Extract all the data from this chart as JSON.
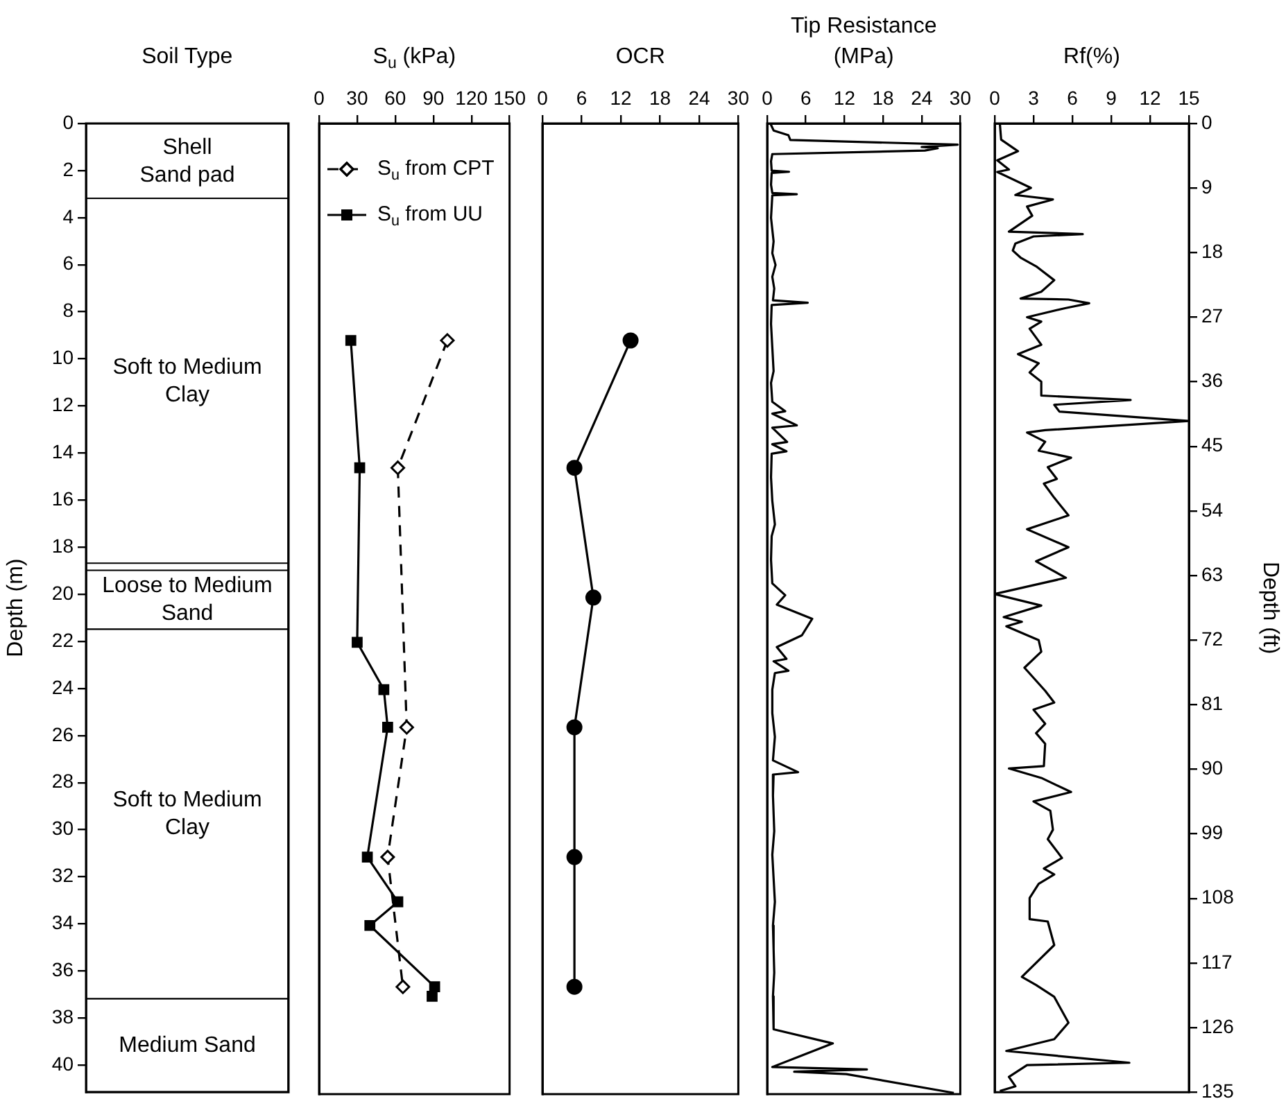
{
  "chart_data": [
    {
      "type": "bar",
      "stacked": true,
      "title": "Soil Type",
      "ylabel": "Depth (m)",
      "categories": [
        null
      ],
      "ylim": [
        41.15,
        0
      ],
      "yticks": [
        0,
        2,
        4,
        6,
        8,
        10,
        12,
        14,
        16,
        18,
        20,
        22,
        24,
        26,
        28,
        30,
        32,
        34,
        36,
        38,
        40
      ],
      "tick_labels": "y",
      "series": [
        {
          "color": "#ffffff",
          "values": [
            3.2
          ],
          "value_labels": [
            "Shell\nSand pad"
          ]
        },
        {
          "color": "#ffffff",
          "values": [
            15.5
          ],
          "value_labels": [
            "Soft to Medium\nClay"
          ]
        },
        {
          "color": "#ffffff",
          "values": [
            0.3
          ],
          "value_labels": [
            null
          ]
        },
        {
          "color": "#ffffff",
          "values": [
            2.5
          ],
          "value_labels": [
            "Loose to Medium\nSand"
          ]
        },
        {
          "color": "#ffffff",
          "values": [
            15.7
          ],
          "value_labels": [
            "Soft to Medium\nClay"
          ]
        },
        {
          "color": "#ffffff",
          "values": [
            3.95
          ],
          "value_labels": [
            "Medium Sand"
          ]
        }
      ]
    },
    {
      "type": "line",
      "title": "S$_{u}$ (kPa)",
      "xlim": [
        0,
        150
      ],
      "xticks": [
        0,
        30,
        60,
        90,
        120,
        150
      ],
      "ylim": [
        41.15,
        0
      ],
      "tick_labels": "x",
      "legend": "top left",
      "series": [
        {
          "name": "S$_{u}$ from CPT",
          "color": "#000000",
          "marker": "diamond",
          "line_style": "dashed",
          "x": [
            101,
            62,
            69,
            54,
            66
          ],
          "values": [
            9.2,
            14.6,
            25.6,
            31.1,
            36.6
          ]
        },
        {
          "name": "S$_{u}$ from UU",
          "color": "#000000",
          "marker": "square",
          "line_style": "solid",
          "x": [
            25,
            32,
            30,
            51,
            54,
            38,
            62,
            40,
            91,
            89
          ],
          "values": [
            9.2,
            14.6,
            22.0,
            24.0,
            25.6,
            31.1,
            33.0,
            34.0,
            36.6,
            37.0
          ]
        }
      ]
    },
    {
      "type": "line",
      "title": "OCR",
      "xlim": [
        0,
        30
      ],
      "xticks": [
        0,
        6,
        12,
        18,
        24,
        30
      ],
      "ylim": [
        41.15,
        0
      ],
      "tick_labels": "x",
      "series": [
        {
          "color": "#000000",
          "marker": "circle",
          "line_style": "solid",
          "x": [
            13.5,
            4.9,
            7.8,
            4.9,
            4.9,
            4.9
          ],
          "values": [
            9.2,
            14.6,
            20.1,
            25.6,
            31.1,
            36.6
          ]
        }
      ]
    },
    {
      "type": "line",
      "title": "Tip Resistance\n(MPa)",
      "xlim": [
        0,
        30
      ],
      "xticks": [
        0,
        6,
        12,
        18,
        24,
        30
      ],
      "ylim": [
        41.15,
        0
      ],
      "tick_labels": "x",
      "series": [
        {
          "color": "#000000",
          "marker": "none",
          "line_style": "solid",
          "x": [
            0.5,
            1.0,
            3.3,
            3.6,
            29.6,
            24,
            26.5,
            24.5,
            0.8,
            0.6,
            0.7,
            3.4,
            0.7,
            0.6,
            0.8,
            4.6,
            0.8,
            0.6,
            1.0,
            0.8,
            1.3,
            0.8,
            1.1,
            0.9,
            6.3,
            0.7,
            0.6,
            0.8,
            1.0,
            0.6,
            0.8,
            2.8,
            0.8,
            4.6,
            0.8,
            3.1,
            0.8,
            3.0,
            0.7,
            0.6,
            0.8,
            1.2,
            0.7,
            0.6,
            0.8,
            2.8,
            1.5,
            7.0,
            5.4,
            1.5,
            3.0,
            1.0,
            3.3,
            1.2,
            0.8,
            0.8,
            1.2,
            0.9,
            4.8,
            1.0,
            0.9,
            1.1,
            0.8,
            1.0,
            1.2,
            0.9,
            1.0,
            1.1,
            0.9,
            1.0,
            10.2,
            0.8,
            15.5,
            4.2,
            12.3,
            29.0
          ],
          "values": [
            0,
            0.3,
            0.5,
            0.7,
            0.9,
            1.0,
            1.05,
            1.15,
            1.3,
            1.6,
            2.0,
            2.05,
            2.1,
            2.6,
            2.95,
            3.0,
            3.05,
            4.0,
            5.0,
            5.5,
            6.0,
            6.5,
            7.0,
            7.5,
            7.6,
            7.7,
            8.5,
            9.5,
            10.5,
            11.0,
            11.8,
            12.2,
            12.3,
            12.8,
            12.9,
            13.5,
            13.6,
            13.9,
            14.0,
            15.0,
            16.0,
            17.0,
            17.5,
            18.5,
            19.5,
            20.0,
            20.4,
            21.0,
            21.7,
            22.2,
            22.7,
            22.8,
            23.2,
            23.3,
            24.0,
            25.0,
            26.0,
            27.0,
            27.5,
            27.6,
            28.5,
            30.0,
            31.0,
            32.0,
            33.0,
            34.0,
            35.0,
            36.0,
            37.0,
            38.4,
            39.0,
            40.0,
            40.1,
            40.2,
            40.3,
            41.1
          ]
        }
      ]
    },
    {
      "type": "line",
      "title": "Rf(%)",
      "xlim": [
        0,
        15
      ],
      "xticks": [
        0,
        3,
        6,
        9,
        12,
        15
      ],
      "ylim": [
        41.15,
        0
      ],
      "y2lim": [
        135,
        0
      ],
      "y2ticks": [
        0,
        9,
        18,
        27,
        36,
        45,
        54,
        63,
        72,
        81,
        90,
        99,
        108,
        117,
        126,
        135
      ],
      "y2label": "Depth (ft)",
      "tick_labels": [
        "x",
        "y2"
      ],
      "series": [
        {
          "color": "#000000",
          "marker": "none",
          "line_style": "solid",
          "x": [
            0.4,
            0.5,
            1.8,
            0.2,
            1.1,
            0.2,
            2.8,
            1.6,
            4.5,
            2.5,
            2.9,
            1.1,
            6.8,
            3.0,
            1.6,
            1.4,
            2.0,
            3.2,
            4.6,
            3.6,
            2.0,
            5.7,
            7.3,
            5.5,
            2.5,
            3.6,
            2.7,
            3.6,
            1.8,
            3.4,
            2.7,
            3.6,
            3.6,
            10.5,
            4.6,
            5.0,
            15,
            3.9,
            2.5,
            3.9,
            3.4,
            5.9,
            4.1,
            4.8,
            3.8,
            4.6,
            5.7,
            2.5,
            5.7,
            3.2,
            5.5,
            0,
            3.6,
            0.7,
            2.1,
            0.9,
            3.4,
            3.6,
            2.3,
            3.9,
            4.6,
            3.0,
            3.9,
            3.2,
            3.9,
            3.8,
            1.1,
            3.6,
            5.9,
            3.0,
            4.3,
            4.5,
            4.1,
            5.2,
            3.8,
            4.6,
            3.4,
            2.7,
            2.7,
            4.1,
            4.6,
            2.1,
            3.2,
            4.6,
            5.7,
            4.6,
            0.9,
            10.4,
            2.5,
            1.1,
            1.6,
            0.4
          ],
          "values": [
            0,
            0.69,
            1.18,
            1.57,
            1.96,
            2.06,
            2.74,
            3.04,
            3.23,
            3.53,
            3.92,
            4.6,
            4.7,
            4.8,
            5.1,
            5.4,
            5.7,
            6.07,
            6.66,
            7.15,
            7.44,
            7.48,
            7.64,
            7.84,
            8.23,
            8.42,
            8.72,
            9.4,
            9.8,
            10.19,
            10.58,
            10.97,
            11.56,
            11.75,
            11.95,
            12.24,
            12.64,
            13.03,
            13.13,
            13.52,
            13.9,
            14.2,
            14.6,
            15.1,
            15.3,
            15.9,
            16.65,
            17.24,
            18.0,
            18.6,
            19.3,
            19.99,
            20.48,
            20.97,
            21.17,
            21.36,
            21.95,
            22.44,
            23.12,
            24.1,
            24.6,
            24.9,
            25.5,
            25.9,
            26.35,
            27.3,
            27.4,
            27.8,
            28.4,
            28.8,
            29.2,
            30.0,
            30.4,
            31.2,
            31.65,
            31.9,
            32.3,
            32.9,
            33.8,
            33.9,
            34.9,
            36.25,
            36.6,
            37.1,
            38.2,
            38.9,
            39.4,
            39.9,
            40.0,
            40.5,
            40.9,
            41.1
          ]
        }
      ]
    }
  ]
}
